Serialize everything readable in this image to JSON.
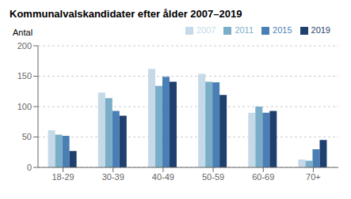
{
  "chart_data": {
    "type": "bar",
    "title": "Kommunalvalskandidater efter ålder 2007–2019",
    "ylabel": "Antal",
    "categories": [
      "18-29",
      "30-39",
      "40-49",
      "50-59",
      "60-69",
      "70+"
    ],
    "series": [
      {
        "name": "2007",
        "color": "#c5d9e8",
        "values": [
          61,
          123,
          162,
          154,
          90,
          13
        ]
      },
      {
        "name": "2011",
        "color": "#7aaec8",
        "values": [
          54,
          114,
          134,
          141,
          100,
          11
        ]
      },
      {
        "name": "2015",
        "color": "#4a7fb5",
        "values": [
          52,
          93,
          149,
          140,
          90,
          30
        ]
      },
      {
        "name": "2019",
        "color": "#1f3f6e",
        "values": [
          27,
          85,
          141,
          119,
          93,
          45
        ]
      }
    ],
    "ylim": [
      0,
      200
    ],
    "yticks": [
      0,
      50,
      100,
      150,
      200
    ],
    "grid": true,
    "legend": "upper right"
  }
}
